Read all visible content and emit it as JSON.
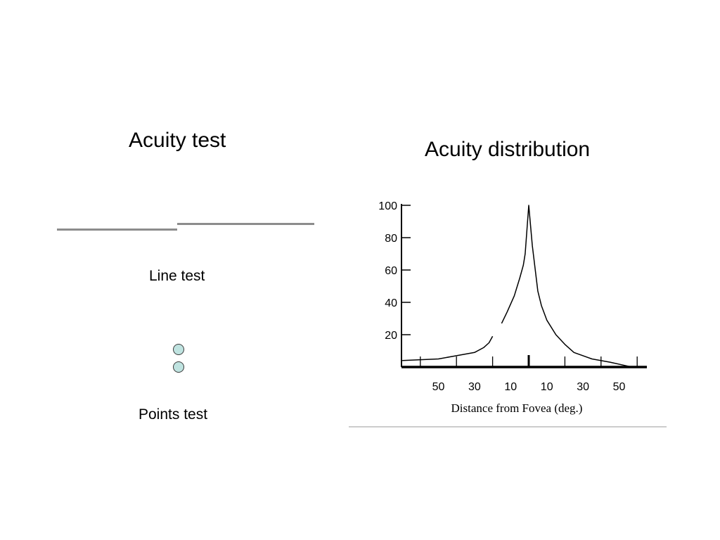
{
  "left": {
    "title": "Acuity test",
    "line_test_label": "Line test",
    "points_test_label": "Points test"
  },
  "right": {
    "title": "Acuity distribution"
  },
  "colors": {
    "line_segments": "#8c8c8c",
    "points_fill": "#bfe3e0",
    "curve": "#000000"
  },
  "chart_data": {
    "type": "line",
    "title": "Acuity distribution",
    "xlabel": "Distance from Fovea (deg.)",
    "ylabel": "",
    "ylim": [
      0,
      100
    ],
    "y_ticks": [
      20,
      40,
      60,
      80,
      100
    ],
    "x_tick_labels": [
      "50",
      "30",
      "10",
      "10",
      "30",
      "50"
    ],
    "x_tick_positions": [
      -50,
      -30,
      -10,
      10,
      30,
      50
    ],
    "x_ticks_unlabeled": [
      -60,
      -40,
      -20,
      0,
      20,
      40,
      60
    ],
    "xlim": [
      -70,
      70
    ],
    "fovea_marker_x": 0,
    "series": [
      {
        "name": "",
        "segment": "left",
        "x": [
          -70,
          -50,
          -40,
          -30,
          -25,
          -22,
          -20
        ],
        "y": [
          4,
          5,
          7,
          9,
          12,
          15,
          19
        ]
      },
      {
        "name": "",
        "segment": "center",
        "x": [
          -15,
          -12,
          -8,
          -5,
          -3,
          -2,
          0,
          2,
          5,
          7,
          10,
          15,
          20,
          25,
          35,
          45,
          53,
          57
        ],
        "y": [
          27,
          34,
          44,
          55,
          63,
          70,
          100,
          75,
          47,
          38,
          29,
          20,
          14,
          9,
          5,
          3,
          1,
          0
        ]
      }
    ]
  }
}
